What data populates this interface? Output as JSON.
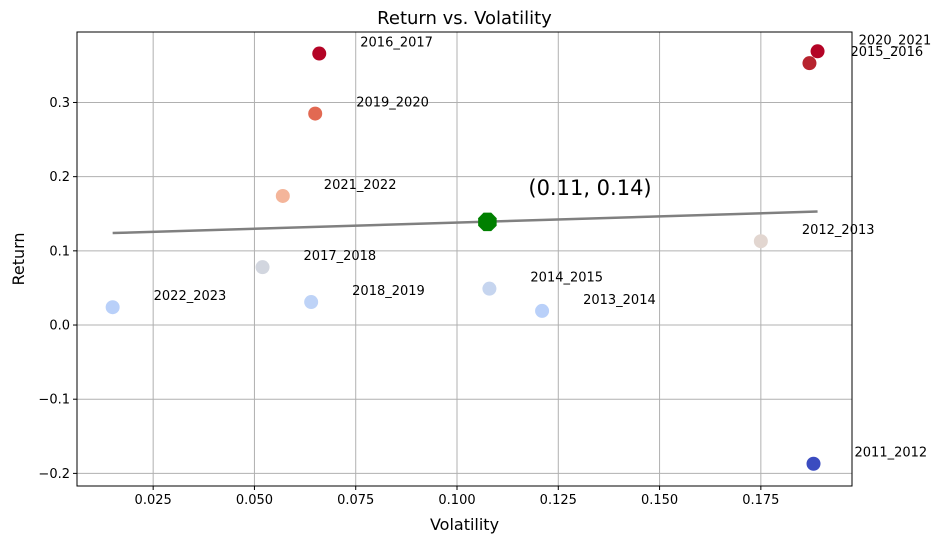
{
  "chart_data": {
    "type": "scatter",
    "title": "Return vs. Volatility",
    "xlabel": "Volatility",
    "ylabel": "Return",
    "xlim": [
      0.0062,
      0.1975
    ],
    "ylim": [
      -0.217,
      0.395
    ],
    "xticks": [
      0.025,
      0.05,
      0.075,
      0.1,
      0.125,
      0.15,
      0.175
    ],
    "xtick_labels": [
      "0.025",
      "0.050",
      "0.075",
      "0.100",
      "0.125",
      "0.150",
      "0.175"
    ],
    "yticks": [
      -0.2,
      -0.1,
      0.0,
      0.1,
      0.2,
      0.3
    ],
    "ytick_labels": [
      "−0.2",
      "−0.1",
      "0.0",
      "0.1",
      "0.2",
      "0.3"
    ],
    "grid": true,
    "colormap": "coolwarm",
    "points": [
      {
        "label": "2011_2012",
        "x": 0.188,
        "y": -0.187,
        "color": "#3b4cc0"
      },
      {
        "label": "2012_2013",
        "x": 0.175,
        "y": 0.113,
        "color": "#e2d6d0"
      },
      {
        "label": "2013_2014",
        "x": 0.121,
        "y": 0.019,
        "color": "#b9d0f9"
      },
      {
        "label": "2014_2015",
        "x": 0.108,
        "y": 0.049,
        "color": "#c6d5ef"
      },
      {
        "label": "2015_2016",
        "x": 0.187,
        "y": 0.353,
        "color": "#b7232e"
      },
      {
        "label": "2016_2017",
        "x": 0.066,
        "y": 0.366,
        "color": "#b40426"
      },
      {
        "label": "2017_2018",
        "x": 0.052,
        "y": 0.078,
        "color": "#d2d6df"
      },
      {
        "label": "2018_2019",
        "x": 0.064,
        "y": 0.031,
        "color": "#bed3f7"
      },
      {
        "label": "2019_2020",
        "x": 0.065,
        "y": 0.285,
        "color": "#e26952"
      },
      {
        "label": "2020_2021",
        "x": 0.189,
        "y": 0.369,
        "color": "#b40426"
      },
      {
        "label": "2021_2022",
        "x": 0.057,
        "y": 0.174,
        "color": "#f4b59a"
      },
      {
        "label": "2022_2023",
        "x": 0.015,
        "y": 0.024,
        "color": "#b9d0f9"
      }
    ],
    "mean_point": {
      "label": "(0.11, 0.14)",
      "x": 0.1075,
      "y": 0.139,
      "color": "#008000"
    },
    "trend_line": {
      "x": [
        0.015,
        0.189
      ],
      "y": [
        0.124,
        0.153
      ],
      "color": "#808080"
    }
  }
}
